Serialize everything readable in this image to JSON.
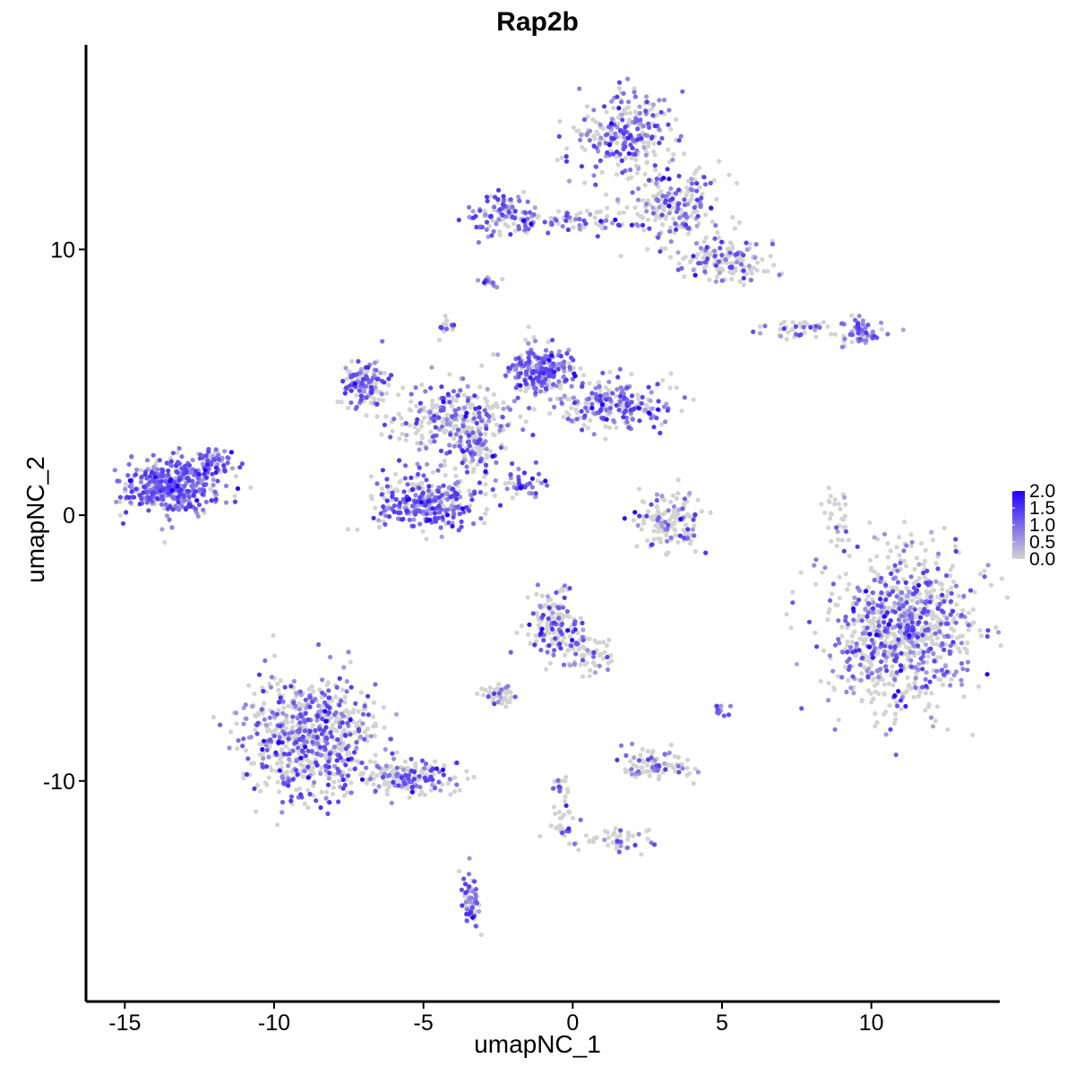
{
  "chart_data": {
    "type": "scatter",
    "title": "Rap2b",
    "xlabel": "umapNC_1",
    "ylabel": "umapNC_2",
    "xlim": [
      -16.3,
      14.3
    ],
    "ylim": [
      -18.3,
      17.7
    ],
    "x_ticks": [
      -15,
      -10,
      -5,
      0,
      5,
      10
    ],
    "x_tick_labels": [
      "-15",
      "-10",
      "-5",
      "0",
      "5",
      "10"
    ],
    "y_ticks": [
      -10,
      0,
      10
    ],
    "y_tick_labels": [
      "-10",
      "0",
      "10"
    ],
    "grid": false,
    "legend": {
      "position": "right",
      "type": "colorbar",
      "min": 0,
      "max": 2.0,
      "ticks": [
        0,
        0.5,
        1.0,
        1.5,
        2.0
      ],
      "tick_labels": [
        "0.0",
        "0.5",
        "1.0",
        "1.5",
        "2.0"
      ],
      "color_low": "#d3d3d3",
      "color_high": "#2200ff"
    },
    "point_color_low": "#d3d3d3",
    "point_color_high": "#2200ff",
    "clusters": [
      {
        "center": [
          -13.4,
          1.1
        ],
        "spread": [
          1.0,
          0.7
        ],
        "n": 420,
        "expr": 0.8
      },
      {
        "center": [
          -12.0,
          2.0
        ],
        "spread": [
          0.4,
          0.3
        ],
        "n": 50,
        "expr": 0.7
      },
      {
        "center": [
          -7.0,
          5.0
        ],
        "spread": [
          0.5,
          0.6
        ],
        "n": 140,
        "expr": 0.5
      },
      {
        "center": [
          -4.0,
          3.7
        ],
        "spread": [
          1.5,
          0.8
        ],
        "n": 260,
        "expr": 0.45
      },
      {
        "center": [
          -1.0,
          5.4
        ],
        "spread": [
          0.7,
          0.6
        ],
        "n": 230,
        "expr": 0.7
      },
      {
        "center": [
          1.5,
          4.2
        ],
        "spread": [
          1.3,
          0.6
        ],
        "n": 220,
        "expr": 0.55
      },
      {
        "center": [
          -4.8,
          0.5
        ],
        "spread": [
          1.2,
          0.8
        ],
        "n": 300,
        "expr": 0.6
      },
      {
        "center": [
          -3.3,
          2.5
        ],
        "spread": [
          0.6,
          0.7
        ],
        "n": 90,
        "expr": 0.4
      },
      {
        "center": [
          -1.6,
          1.3
        ],
        "spread": [
          0.6,
          0.4
        ],
        "n": 40,
        "expr": 0.9
      },
      {
        "center": [
          1.7,
          14.3
        ],
        "spread": [
          1.1,
          1.1
        ],
        "n": 260,
        "expr": 0.55
      },
      {
        "center": [
          3.4,
          11.6
        ],
        "spread": [
          1.0,
          1.0
        ],
        "n": 200,
        "expr": 0.4
      },
      {
        "center": [
          5.1,
          9.6
        ],
        "spread": [
          1.0,
          0.6
        ],
        "n": 140,
        "expr": 0.35
      },
      {
        "center": [
          -2.3,
          11.3
        ],
        "spread": [
          0.8,
          0.5
        ],
        "n": 120,
        "expr": 0.55
      },
      {
        "center": [
          0.3,
          11.0
        ],
        "spread": [
          1.2,
          0.3
        ],
        "n": 60,
        "expr": 0.35
      },
      {
        "center": [
          -2.8,
          8.8
        ],
        "spread": [
          0.2,
          0.2
        ],
        "n": 12,
        "expr": 0.5
      },
      {
        "center": [
          9.6,
          6.9
        ],
        "spread": [
          0.6,
          0.3
        ],
        "n": 60,
        "expr": 0.75
      },
      {
        "center": [
          7.6,
          7.0
        ],
        "spread": [
          0.8,
          0.2
        ],
        "n": 40,
        "expr": 0.3
      },
      {
        "center": [
          11.0,
          -4.2
        ],
        "spread": [
          1.6,
          2.0
        ],
        "n": 900,
        "expr": 0.4
      },
      {
        "center": [
          8.8,
          0.0
        ],
        "spread": [
          0.3,
          0.8
        ],
        "n": 30,
        "expr": 0.1
      },
      {
        "center": [
          3.2,
          -0.3
        ],
        "spread": [
          0.8,
          0.8
        ],
        "n": 140,
        "expr": 0.3
      },
      {
        "center": [
          -8.8,
          -8.3
        ],
        "spread": [
          1.4,
          1.5
        ],
        "n": 700,
        "expr": 0.45
      },
      {
        "center": [
          -5.4,
          -9.9
        ],
        "spread": [
          1.0,
          0.4
        ],
        "n": 180,
        "expr": 0.35
      },
      {
        "center": [
          -3.4,
          -14.4
        ],
        "spread": [
          0.2,
          0.7
        ],
        "n": 60,
        "expr": 0.7
      },
      {
        "center": [
          -0.6,
          -4.1
        ],
        "spread": [
          0.6,
          0.9
        ],
        "n": 150,
        "expr": 0.35
      },
      {
        "center": [
          0.5,
          -5.2
        ],
        "spread": [
          0.5,
          0.5
        ],
        "n": 60,
        "expr": 0.3
      },
      {
        "center": [
          -2.4,
          -6.8
        ],
        "spread": [
          0.4,
          0.3
        ],
        "n": 50,
        "expr": 0.35
      },
      {
        "center": [
          2.8,
          -9.4
        ],
        "spread": [
          0.8,
          0.4
        ],
        "n": 90,
        "expr": 0.3
      },
      {
        "center": [
          -0.4,
          -11.0
        ],
        "spread": [
          0.3,
          0.9
        ],
        "n": 40,
        "expr": 0.4
      },
      {
        "center": [
          1.5,
          -12.2
        ],
        "spread": [
          1.0,
          0.3
        ],
        "n": 50,
        "expr": 0.3
      },
      {
        "center": [
          5.0,
          -7.3
        ],
        "spread": [
          0.2,
          0.2
        ],
        "n": 12,
        "expr": 0.6
      },
      {
        "center": [
          -4.2,
          7.1
        ],
        "spread": [
          0.2,
          0.3
        ],
        "n": 15,
        "expr": 0.5
      }
    ]
  }
}
